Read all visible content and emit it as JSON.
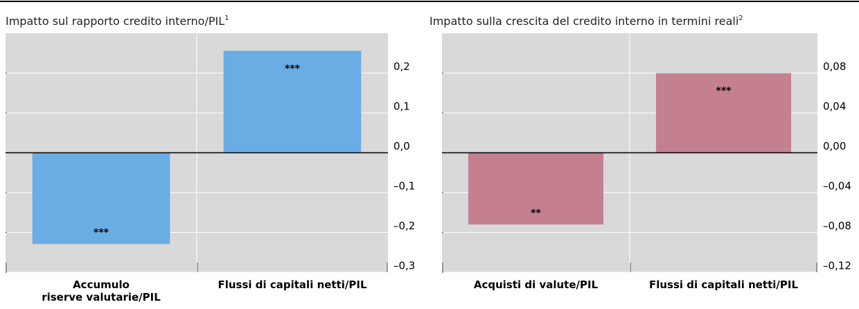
{
  "chart_data": [
    {
      "type": "bar",
      "title": "Impatto sul rapporto credito interno/PIL",
      "title_note": "1",
      "categories": [
        "Accumulo\nriserve valutarie/PIL",
        "Flussi di capitali netti/PIL"
      ],
      "values": [
        -0.229,
        0.256
      ],
      "annotations": [
        "***",
        "***"
      ],
      "color": "#6aade4",
      "ylim": [
        -0.3,
        0.3
      ],
      "yticks": [
        {
          "value": -0.3,
          "label": "–0,3"
        },
        {
          "value": -0.2,
          "label": "–0,2"
        },
        {
          "value": -0.1,
          "label": "–0,1"
        },
        {
          "value": 0,
          "label": "0,0"
        },
        {
          "value": 0.1,
          "label": "0,1"
        },
        {
          "value": 0.2,
          "label": "0,2"
        }
      ],
      "grid": true
    },
    {
      "type": "bar",
      "title": "Impatto sulla crescita del credito interno in termini reali",
      "title_note": "2",
      "categories": [
        "Acquisti di valute/PIL",
        "Flussi di capitali netti/PIL"
      ],
      "values": [
        -0.072,
        0.08
      ],
      "annotations": [
        "**",
        "***"
      ],
      "color": "#c4808f",
      "ylim": [
        -0.12,
        0.12
      ],
      "yticks": [
        {
          "value": -0.12,
          "label": "–0,12"
        },
        {
          "value": -0.08,
          "label": "–0,08"
        },
        {
          "value": -0.04,
          "label": "–0,04"
        },
        {
          "value": 0,
          "label": "0,00"
        },
        {
          "value": 0.04,
          "label": "0,04"
        },
        {
          "value": 0.08,
          "label": "0,08"
        }
      ],
      "grid": true
    }
  ]
}
